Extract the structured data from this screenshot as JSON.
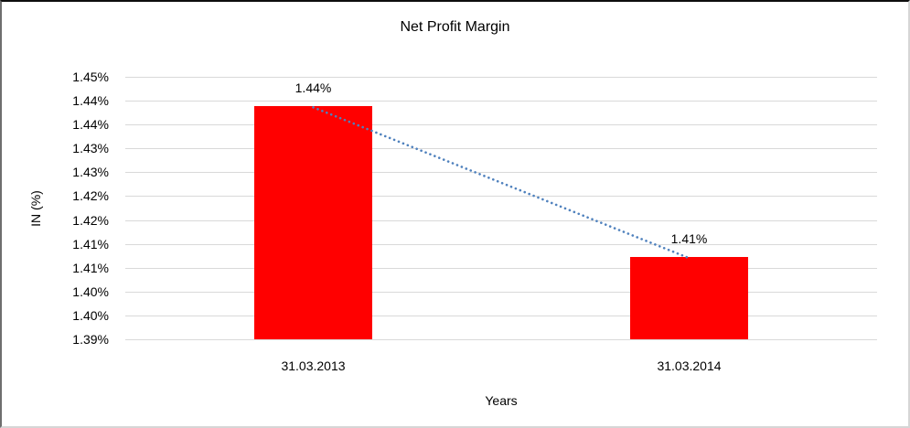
{
  "chart_data": {
    "type": "bar",
    "title": "Net Profit Margin",
    "xlabel": "Years",
    "ylabel": "IN (%)",
    "categories": [
      "31.03.2013",
      "31.03.2014"
    ],
    "values": [
      1.4388,
      1.4072
    ],
    "data_labels": [
      "1.44%",
      "1.41%"
    ],
    "ylim": [
      1.39,
      1.445
    ],
    "ytick_step": 0.005,
    "ytick_labels_top_to_bottom": [
      "1.45%",
      "1.44%",
      "1.44%",
      "1.43%",
      "1.43%",
      "1.42%",
      "1.42%",
      "1.41%",
      "1.41%",
      "1.40%",
      "1.40%",
      "1.39%"
    ],
    "grid": true,
    "legend": "none",
    "bar_color": "#FF0000",
    "gridline_color": "#D9D9D9",
    "trendline": {
      "type": "linear",
      "style": "dotted",
      "color": "#4F81BD",
      "connects": [
        "31.03.2013 bar top",
        "31.03.2014 bar top"
      ]
    }
  }
}
